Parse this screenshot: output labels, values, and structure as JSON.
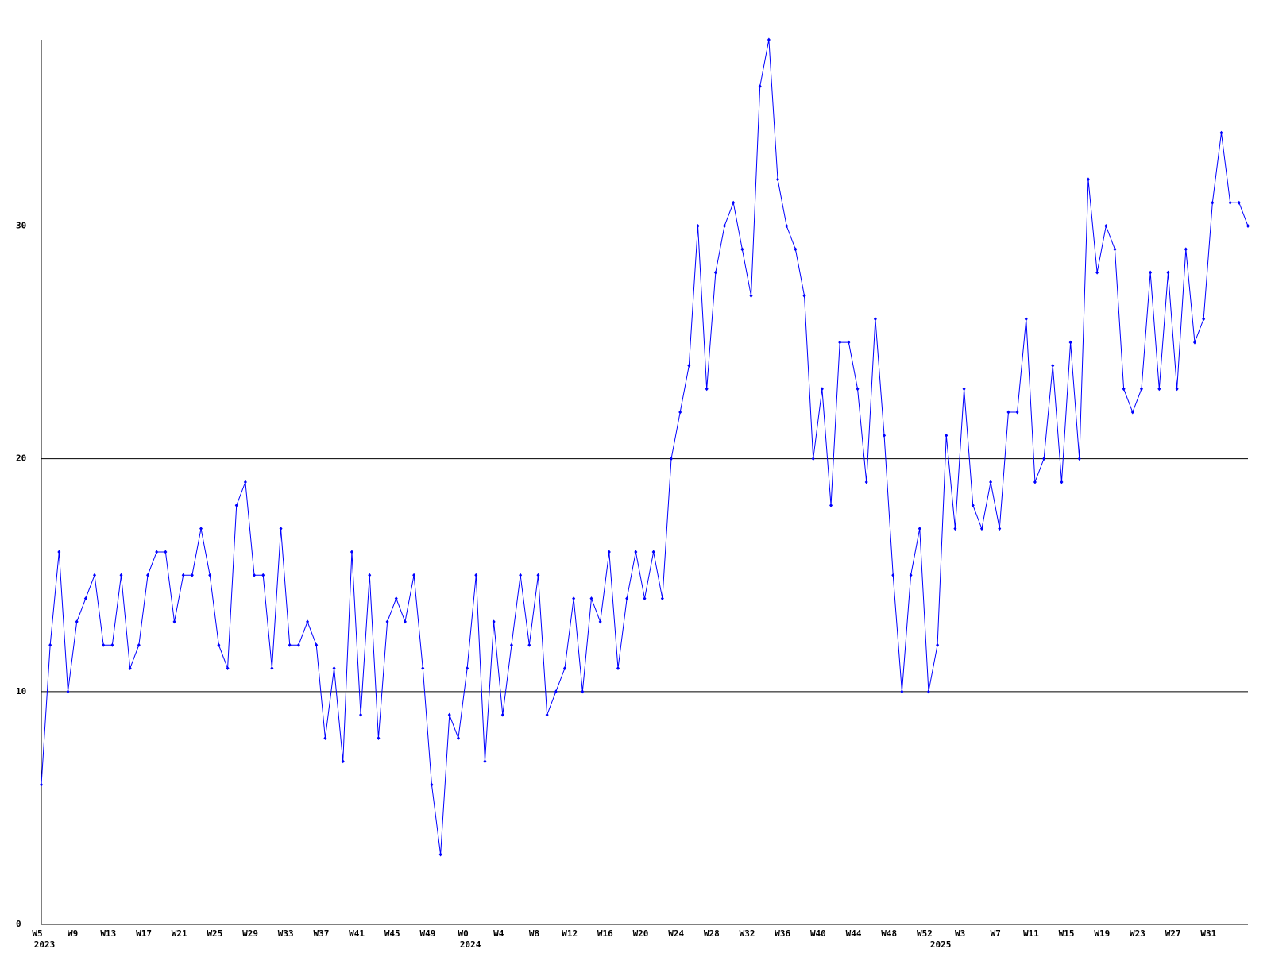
{
  "chart_data": {
    "type": "line",
    "categories": [
      "W5",
      null,
      null,
      null,
      "W9",
      null,
      null,
      null,
      "W13",
      null,
      null,
      null,
      "W17",
      null,
      null,
      null,
      "W21",
      null,
      null,
      null,
      "W25",
      null,
      null,
      null,
      "W29",
      null,
      null,
      null,
      "W33",
      null,
      null,
      null,
      "W37",
      null,
      null,
      null,
      "W41",
      null,
      null,
      null,
      "W45",
      null,
      null,
      null,
      "W49",
      null,
      null,
      null,
      "W0",
      null,
      null,
      null,
      "W4",
      null,
      null,
      null,
      "W8",
      null,
      null,
      null,
      "W12",
      null,
      null,
      null,
      "W16",
      null,
      null,
      null,
      "W20",
      null,
      null,
      null,
      "W24",
      null,
      null,
      null,
      "W28",
      null,
      null,
      null,
      "W32",
      null,
      null,
      null,
      "W36",
      null,
      null,
      null,
      "W40",
      null,
      null,
      null,
      "W44",
      null,
      null,
      null,
      "W48",
      null,
      null,
      null,
      "W52",
      null,
      null,
      null,
      "W3",
      null,
      null,
      null,
      "W7",
      null,
      null,
      null,
      "W11",
      null,
      null,
      null,
      "W15",
      null,
      null,
      null,
      "W19",
      null,
      null,
      null,
      "W23",
      null,
      null,
      null,
      "W27",
      null,
      null,
      null,
      "W31",
      null,
      null,
      null,
      null
    ],
    "year_labels": [
      {
        "label": "2023",
        "index": 0
      },
      {
        "label": "2024",
        "index": 48
      },
      {
        "label": "2025",
        "index": 101
      }
    ],
    "series": [
      {
        "color": "#0000ff",
        "values": [
          6,
          12,
          16,
          10,
          13,
          14,
          15,
          12,
          12,
          15,
          11,
          12,
          15,
          16,
          16,
          13,
          15,
          15,
          17,
          15,
          12,
          11,
          18,
          19,
          15,
          15,
          11,
          17,
          12,
          12,
          13,
          12,
          8,
          11,
          7,
          16,
          9,
          15,
          8,
          13,
          14,
          13,
          15,
          11,
          6,
          3,
          9,
          8,
          11,
          15,
          7,
          13,
          9,
          12,
          15,
          12,
          15,
          9,
          10,
          11,
          14,
          10,
          14,
          13,
          16,
          11,
          14,
          16,
          14,
          16,
          14,
          20,
          22,
          24,
          30,
          23,
          28,
          30,
          31,
          29,
          27,
          36,
          38,
          32,
          30,
          29,
          27,
          20,
          23,
          18,
          25,
          25,
          23,
          19,
          26,
          21,
          15,
          10,
          15,
          17,
          10,
          12,
          21,
          17,
          23,
          18,
          17,
          19,
          17,
          22,
          22,
          26,
          19,
          20,
          24,
          19,
          25,
          20,
          32,
          28,
          30,
          29,
          23,
          22,
          23,
          28,
          23,
          28,
          23,
          29,
          25,
          26,
          31,
          34,
          31,
          31,
          30
        ]
      }
    ],
    "ylim": [
      0,
      38
    ],
    "yticks": [
      0,
      10,
      20,
      30
    ],
    "grid": true
  }
}
